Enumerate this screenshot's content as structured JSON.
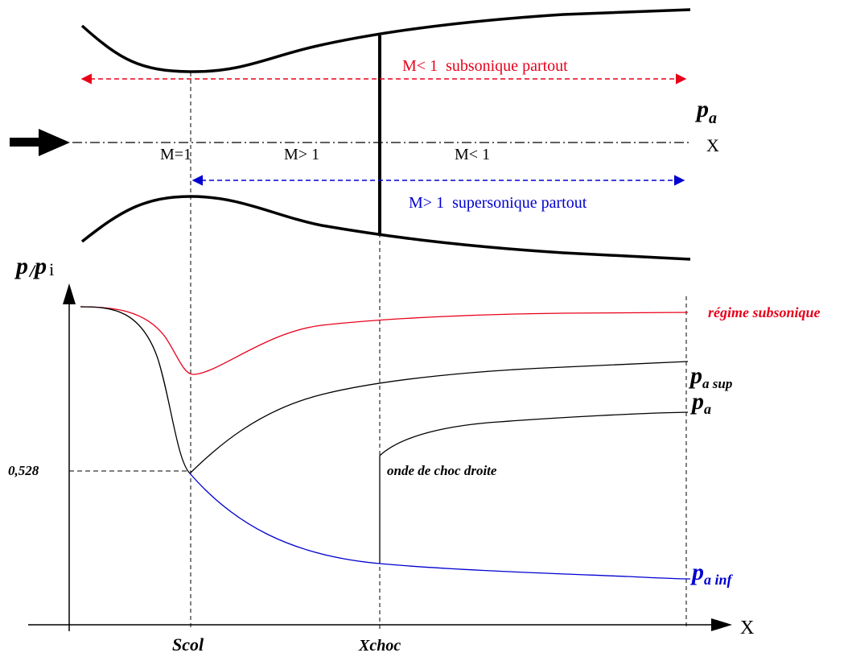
{
  "nozzle": {
    "subsonic_line_label": "M< 1  subsonique partout",
    "supersonic_line_label": "M> 1  supersonique partout",
    "pressure_label": {
      "base": "p",
      "sub": "a"
    },
    "axis_label": "X",
    "zone_labels": [
      "M=1",
      "M> 1",
      "M< 1"
    ]
  },
  "graph": {
    "ylabel": {
      "p1": "p",
      "slash": "/",
      "p2": "p",
      "sub": "i"
    },
    "xlabel": "X",
    "y_tick": "0,528",
    "x_ticks": [
      "Scol",
      "Xchoc"
    ],
    "shock_label": "onde de choc droite",
    "curves": {
      "subsonic": "régime subsonique",
      "pa_sup": {
        "base": "p",
        "sub": "a sup"
      },
      "pa": {
        "base": "p",
        "sub": "a"
      },
      "pa_inf": {
        "base": "p",
        "sub": "a inf"
      }
    }
  },
  "colors": {
    "subsonic": "#e8001a",
    "supersonic": "#0000d0",
    "ink": "#000000"
  }
}
